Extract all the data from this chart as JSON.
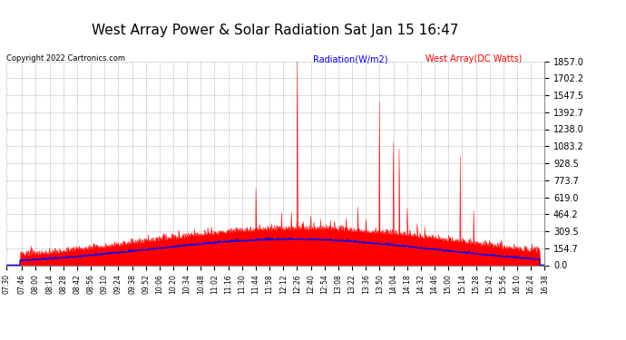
{
  "title": "West Array Power & Solar Radiation Sat Jan 15 16:47",
  "copyright": "Copyright 2022 Cartronics.com",
  "legend_radiation": "Radiation(W/m2)",
  "legend_west": "West Array(DC Watts)",
  "ylabel_right_ticks": [
    0.0,
    154.7,
    309.5,
    464.2,
    619.0,
    773.7,
    928.5,
    1083.2,
    1238.0,
    1392.7,
    1547.5,
    1702.2,
    1857.0
  ],
  "x_tick_labels": [
    "07:30",
    "07:46",
    "08:00",
    "08:14",
    "08:28",
    "08:42",
    "08:56",
    "09:10",
    "09:24",
    "09:38",
    "09:52",
    "10:06",
    "10:20",
    "10:34",
    "10:48",
    "11:02",
    "11:16",
    "11:30",
    "11:44",
    "11:58",
    "12:12",
    "12:26",
    "12:40",
    "12:54",
    "13:08",
    "13:22",
    "13:36",
    "13:50",
    "14:04",
    "14:18",
    "14:32",
    "14:46",
    "15:00",
    "15:14",
    "15:28",
    "15:42",
    "15:56",
    "16:10",
    "16:24",
    "16:38"
  ],
  "ymax": 1857.0,
  "ymin": 0.0,
  "background_color": "#ffffff",
  "grid_color": "#aaaaaa",
  "radiation_color": "#ff0000",
  "west_array_color": "#0000ff",
  "fill_color": "#ff0000",
  "title_fontsize": 11,
  "radiation_label_color": "#0000ff",
  "west_label_color": "#ff0000"
}
